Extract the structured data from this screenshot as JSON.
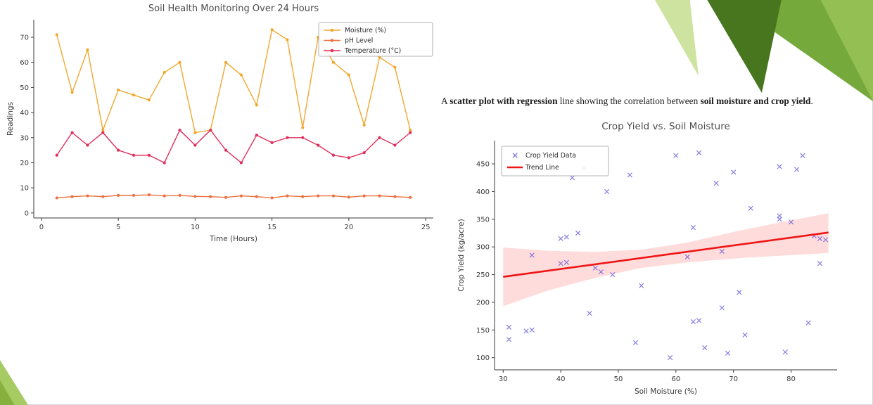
{
  "slide": {
    "caption_parts": [
      {
        "text": "A ",
        "bold": false
      },
      {
        "text": "scatter plot with regression",
        "bold": true
      },
      {
        "text": " line showing the correlation between ",
        "bold": false
      },
      {
        "text": "soil moisture and crop yield",
        "bold": true
      },
      {
        "text": ".",
        "bold": false
      }
    ],
    "decoration_colors": {
      "mid_green": "#76a93c",
      "light_green": "#94bf53",
      "dark_green": "#47761f",
      "pale_green": "#cfe3a0",
      "bl_light_green": "#a7cb63",
      "bl_dark_green": "#86b13f"
    }
  },
  "chart_data": [
    {
      "type": "line",
      "title": "Soil Health Monitoring Over 24 Hours",
      "xlabel": "Time (Hours)",
      "ylabel": "Readings",
      "xlim": [
        -0.5,
        25.5
      ],
      "ylim": [
        -2,
        77
      ],
      "xticks": [
        0,
        5,
        10,
        15,
        20,
        25
      ],
      "yticks": [
        0,
        10,
        20,
        30,
        40,
        50,
        60,
        70
      ],
      "grid": false,
      "legend_position": "upper right",
      "x": [
        1,
        2,
        3,
        4,
        5,
        6,
        7,
        8,
        9,
        10,
        11,
        12,
        13,
        14,
        15,
        16,
        17,
        18,
        19,
        20,
        21,
        22,
        23,
        24
      ],
      "series": [
        {
          "name": "Moisture (%)",
          "color": "#f2a72e",
          "values": [
            71,
            48,
            65,
            33,
            49,
            47,
            45,
            56,
            60,
            32,
            33,
            60,
            55,
            43,
            73,
            69,
            34,
            70,
            60,
            55,
            35,
            62,
            58,
            33
          ]
        },
        {
          "name": "pH Level",
          "color": "#ed7140",
          "values": [
            6,
            6.5,
            6.8,
            6.5,
            7,
            7,
            7.2,
            6.8,
            7,
            6.6,
            6.5,
            6.2,
            6.8,
            6.5,
            6,
            6.8,
            6.5,
            6.8,
            6.8,
            6.3,
            6.8,
            6.8,
            6.5,
            6.2
          ]
        },
        {
          "name": "Temperature (°C)",
          "color": "#e02e5c",
          "values": [
            23,
            32,
            27,
            32,
            25,
            23,
            23,
            20,
            33,
            27,
            33,
            25,
            20,
            31,
            28,
            30,
            30,
            27,
            23,
            22,
            24,
            30,
            27,
            32
          ]
        }
      ]
    },
    {
      "type": "scatter",
      "title": "Crop Yield vs. Soil Moisture",
      "xlabel": "Soil Moisture (%)",
      "ylabel": "Crop Yield (kg/acre)",
      "xlim": [
        28.5,
        88
      ],
      "ylim": [
        78,
        492
      ],
      "xticks": [
        30,
        40,
        50,
        60,
        70,
        80
      ],
      "yticks": [
        100,
        150,
        200,
        250,
        300,
        350,
        400,
        450
      ],
      "grid": false,
      "legend_position": "upper left",
      "legend": [
        "Crop Yield Data",
        "Trend Line"
      ],
      "marker": "x",
      "marker_color": "#5248d6",
      "points": [
        [
          31,
          133
        ],
        [
          31,
          155
        ],
        [
          34,
          148
        ],
        [
          35,
          150
        ],
        [
          35,
          285
        ],
        [
          40,
          270
        ],
        [
          40,
          315
        ],
        [
          41,
          272
        ],
        [
          41,
          318
        ],
        [
          42,
          425
        ],
        [
          43,
          325
        ],
        [
          44,
          443
        ],
        [
          45,
          180
        ],
        [
          46,
          262
        ],
        [
          47,
          255
        ],
        [
          48,
          400
        ],
        [
          49,
          250
        ],
        [
          52,
          430
        ],
        [
          53,
          127
        ],
        [
          54,
          230
        ],
        [
          59,
          100
        ],
        [
          60,
          465
        ],
        [
          62,
          282
        ],
        [
          63,
          335
        ],
        [
          63,
          165
        ],
        [
          64,
          470
        ],
        [
          64,
          167
        ],
        [
          65,
          118
        ],
        [
          67,
          415
        ],
        [
          68,
          292
        ],
        [
          68,
          190
        ],
        [
          69,
          108
        ],
        [
          70,
          435
        ],
        [
          71,
          218
        ],
        [
          72,
          141
        ],
        [
          73,
          370
        ],
        [
          78,
          350
        ],
        [
          78,
          356
        ],
        [
          78,
          445
        ],
        [
          79,
          110
        ],
        [
          80,
          345
        ],
        [
          81,
          440
        ],
        [
          82,
          465
        ],
        [
          83,
          163
        ],
        [
          84,
          320
        ],
        [
          85,
          270
        ],
        [
          85,
          315
        ],
        [
          86,
          313
        ]
      ],
      "trend": {
        "color": "#f01414",
        "x": [
          30,
          86.5
        ],
        "y": [
          246,
          326
        ]
      },
      "band": {
        "color": "#ff9c9c",
        "opacity": 0.35,
        "points": [
          [
            30,
            193,
            299
          ],
          [
            38,
            222,
            293
          ],
          [
            46,
            244,
            291
          ],
          [
            54,
            262,
            295
          ],
          [
            62,
            272,
            308
          ],
          [
            70,
            279,
            327
          ],
          [
            78,
            284,
            344
          ],
          [
            86.5,
            289,
            361
          ]
        ]
      }
    }
  ]
}
